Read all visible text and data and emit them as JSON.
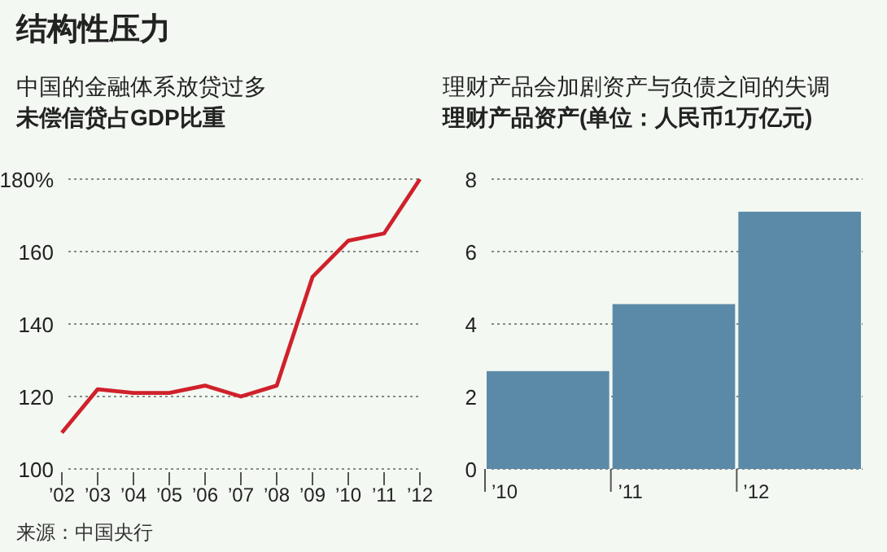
{
  "chart_data": [
    {
      "type": "line",
      "title": "中国的金融体系放贷过多",
      "subtitle": "未偿信贷占GDP比重",
      "categories": [
        "’02",
        "’03",
        "’04",
        "’05",
        "’06",
        "’07",
        "’08",
        "’09",
        "’10",
        "’11",
        "’12"
      ],
      "values": [
        110,
        122,
        121,
        121,
        123,
        120,
        123,
        153,
        163,
        165,
        180
      ],
      "color": "#d0212b",
      "ylim": [
        100,
        180
      ],
      "yticks": [
        100,
        120,
        140,
        160,
        {
          "value": 180,
          "label": "180%"
        }
      ],
      "grid": "y",
      "line_style": "solid",
      "annotations": [
        "结构性压力",
        "来源：中国央行"
      ]
    },
    {
      "type": "bar",
      "title": "理财产品会加剧资产与负债之间的失调",
      "subtitle": "理财产品资产(单位：人民币1万亿元)",
      "categories": [
        "’10",
        "’11",
        "’12"
      ],
      "values": [
        2.7,
        4.55,
        7.1
      ],
      "color": "#5b8aa8",
      "ylim": [
        0,
        8
      ],
      "yticks": [
        0,
        2,
        4,
        6,
        8
      ],
      "grid": "y"
    }
  ]
}
